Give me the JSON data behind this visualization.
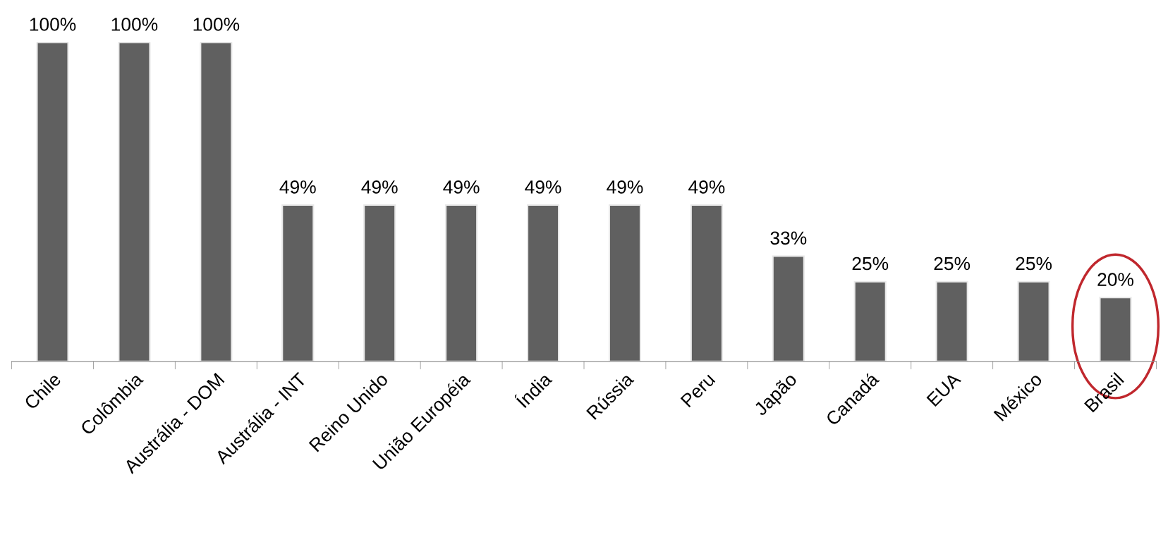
{
  "chart_data": {
    "type": "bar",
    "categories": [
      "Chile",
      "Colômbia",
      "Austrália - DOM",
      "Austrália - INT",
      "Reino Unido",
      "União Européia",
      "Índia",
      "Rússia",
      "Peru",
      "Japão",
      "Canadá",
      "EUA",
      "México",
      "Brasil"
    ],
    "values": [
      100,
      100,
      100,
      49,
      49,
      49,
      49,
      49,
      49,
      33,
      25,
      25,
      25,
      20
    ],
    "value_labels": [
      "100%",
      "100%",
      "100%",
      "49%",
      "49%",
      "49%",
      "49%",
      "49%",
      "49%",
      "33%",
      "25%",
      "25%",
      "25%",
      "20%"
    ],
    "color": "#606060",
    "grid": false,
    "legend": false,
    "tick_labels": "x"
  }
}
